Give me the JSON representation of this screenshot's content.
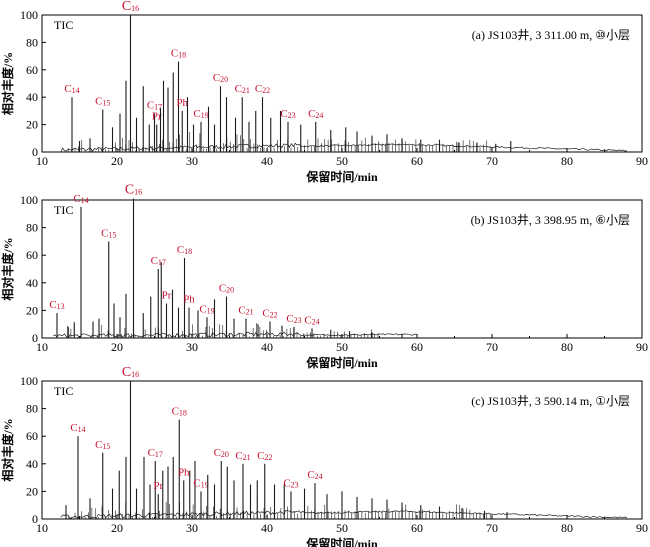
{
  "chart_data": [
    {
      "type": "line",
      "series_label": "TIC",
      "title": "(a) JS103井, 3 311.00 m, ⑩小层",
      "xlabel": "保留时间/min",
      "ylabel": "相对丰度/%",
      "xlim": [
        10,
        90
      ],
      "ylim": [
        0,
        100
      ],
      "x_ticks": [
        "10",
        "20",
        "30",
        "40",
        "50",
        "60",
        "70",
        "80",
        "90"
      ],
      "y_ticks": [
        "0",
        "20",
        "40",
        "60",
        "80",
        "100"
      ],
      "grid": false,
      "peaks": [
        {
          "x": 14.0,
          "y": 40,
          "label": "C14"
        },
        {
          "x": 15.0,
          "y": 8
        },
        {
          "x": 16.4,
          "y": 10
        },
        {
          "x": 18.1,
          "y": 31,
          "label": "C15"
        },
        {
          "x": 19.4,
          "y": 18
        },
        {
          "x": 20.4,
          "y": 28
        },
        {
          "x": 21.2,
          "y": 52
        },
        {
          "x": 21.8,
          "y": 100,
          "label": "C16"
        },
        {
          "x": 22.6,
          "y": 25
        },
        {
          "x": 23.5,
          "y": 48
        },
        {
          "x": 24.3,
          "y": 20
        },
        {
          "x": 25.0,
          "y": 28,
          "label": "C17"
        },
        {
          "x": 25.3,
          "y": 20,
          "label": "Pr"
        },
        {
          "x": 25.8,
          "y": 32
        },
        {
          "x": 26.2,
          "y": 52
        },
        {
          "x": 26.8,
          "y": 47
        },
        {
          "x": 27.5,
          "y": 58
        },
        {
          "x": 28.2,
          "y": 66,
          "label": "C18"
        },
        {
          "x": 28.7,
          "y": 30,
          "label": "Ph"
        },
        {
          "x": 29.4,
          "y": 40
        },
        {
          "x": 30.2,
          "y": 20
        },
        {
          "x": 31.2,
          "y": 22,
          "label": "C19"
        },
        {
          "x": 32.2,
          "y": 33
        },
        {
          "x": 33.0,
          "y": 20
        },
        {
          "x": 33.8,
          "y": 48,
          "label": "C20"
        },
        {
          "x": 34.6,
          "y": 40
        },
        {
          "x": 35.8,
          "y": 25
        },
        {
          "x": 36.7,
          "y": 40,
          "label": "C21"
        },
        {
          "x": 37.6,
          "y": 22
        },
        {
          "x": 38.5,
          "y": 30
        },
        {
          "x": 39.4,
          "y": 40,
          "label": "C22"
        },
        {
          "x": 40.5,
          "y": 25
        },
        {
          "x": 41.8,
          "y": 30
        },
        {
          "x": 42.8,
          "y": 22,
          "label": "C23"
        },
        {
          "x": 44.5,
          "y": 20
        },
        {
          "x": 46.5,
          "y": 22,
          "label": "C24"
        },
        {
          "x": 48.5,
          "y": 16
        },
        {
          "x": 50.5,
          "y": 18
        },
        {
          "x": 52.0,
          "y": 15
        },
        {
          "x": 54.0,
          "y": 12
        },
        {
          "x": 56.0,
          "y": 13
        },
        {
          "x": 58.0,
          "y": 10
        },
        {
          "x": 60.5,
          "y": 9
        },
        {
          "x": 63.0,
          "y": 9
        },
        {
          "x": 65.5,
          "y": 7
        },
        {
          "x": 68.0,
          "y": 7
        },
        {
          "x": 70.5,
          "y": 6
        },
        {
          "x": 72.5,
          "y": 8
        }
      ]
    },
    {
      "type": "line",
      "series_label": "TIC",
      "title": "(b) JS103井, 3 398.95 m, ⑥小层",
      "xlabel": "保留时间/min",
      "ylabel": "相对丰度/%",
      "xlim": [
        10,
        90
      ],
      "ylim": [
        0,
        100
      ],
      "x_ticks": [
        "10",
        "20",
        "30",
        "40",
        "50",
        "60",
        "70",
        "80",
        "90"
      ],
      "y_ticks": [
        "0",
        "20",
        "40",
        "60",
        "80",
        "100"
      ],
      "grid": false,
      "peaks": [
        {
          "x": 12.0,
          "y": 18,
          "label": "C13"
        },
        {
          "x": 13.5,
          "y": 8
        },
        {
          "x": 14.3,
          "y": 11
        },
        {
          "x": 15.2,
          "y": 95,
          "label": "C14"
        },
        {
          "x": 16.8,
          "y": 12
        },
        {
          "x": 17.6,
          "y": 14
        },
        {
          "x": 18.9,
          "y": 70,
          "label": "C15"
        },
        {
          "x": 19.6,
          "y": 25
        },
        {
          "x": 20.4,
          "y": 15
        },
        {
          "x": 21.2,
          "y": 32
        },
        {
          "x": 22.2,
          "y": 101,
          "label": "C16"
        },
        {
          "x": 23.5,
          "y": 18
        },
        {
          "x": 24.5,
          "y": 30
        },
        {
          "x": 25.5,
          "y": 50,
          "label": "C17"
        },
        {
          "x": 25.9,
          "y": 55
        },
        {
          "x": 26.6,
          "y": 25,
          "label": "Pr"
        },
        {
          "x": 27.4,
          "y": 35
        },
        {
          "x": 28.2,
          "y": 22
        },
        {
          "x": 29.0,
          "y": 58,
          "label": "C18"
        },
        {
          "x": 29.6,
          "y": 22,
          "label": "Ph"
        },
        {
          "x": 30.8,
          "y": 20
        },
        {
          "x": 32.0,
          "y": 15,
          "label": "C19"
        },
        {
          "x": 33.0,
          "y": 28
        },
        {
          "x": 34.6,
          "y": 30,
          "label": "C20"
        },
        {
          "x": 35.6,
          "y": 14
        },
        {
          "x": 37.2,
          "y": 14,
          "label": "C21"
        },
        {
          "x": 38.8,
          "y": 10
        },
        {
          "x": 40.4,
          "y": 12,
          "label": "C22"
        },
        {
          "x": 42.0,
          "y": 9
        },
        {
          "x": 43.6,
          "y": 8,
          "label": "C23"
        },
        {
          "x": 46.0,
          "y": 7,
          "label": "C24"
        },
        {
          "x": 48.5,
          "y": 6
        },
        {
          "x": 51.0,
          "y": 5
        },
        {
          "x": 54.0,
          "y": 4
        },
        {
          "x": 58.0,
          "y": 3
        }
      ]
    },
    {
      "type": "line",
      "series_label": "TIC",
      "title": "(c) JS103井, 3 590.14 m, ①小层",
      "xlabel": "保留时间/min",
      "ylabel": "相对丰度/%",
      "xlim": [
        10,
        90
      ],
      "ylim": [
        0,
        100
      ],
      "x_ticks": [
        "10",
        "20",
        "30",
        "40",
        "50",
        "60",
        "70",
        "80",
        "90"
      ],
      "y_ticks": [
        "0",
        "20",
        "40",
        "60",
        "80",
        "100"
      ],
      "grid": false,
      "peaks": [
        {
          "x": 13.2,
          "y": 10
        },
        {
          "x": 14.8,
          "y": 60,
          "label": "C14"
        },
        {
          "x": 16.4,
          "y": 15
        },
        {
          "x": 18.1,
          "y": 48,
          "label": "C15"
        },
        {
          "x": 19.4,
          "y": 22
        },
        {
          "x": 20.3,
          "y": 35
        },
        {
          "x": 21.2,
          "y": 45
        },
        {
          "x": 21.8,
          "y": 100,
          "label": "C16"
        },
        {
          "x": 22.6,
          "y": 22
        },
        {
          "x": 23.6,
          "y": 45
        },
        {
          "x": 24.4,
          "y": 25
        },
        {
          "x": 25.1,
          "y": 42,
          "label": "C17"
        },
        {
          "x": 25.5,
          "y": 18,
          "label": "Pr"
        },
        {
          "x": 26.1,
          "y": 35
        },
        {
          "x": 26.8,
          "y": 38
        },
        {
          "x": 27.5,
          "y": 45
        },
        {
          "x": 28.3,
          "y": 72,
          "label": "C18"
        },
        {
          "x": 28.9,
          "y": 28,
          "label": "Ph"
        },
        {
          "x": 29.7,
          "y": 35
        },
        {
          "x": 30.4,
          "y": 42
        },
        {
          "x": 31.2,
          "y": 20,
          "label": "C19"
        },
        {
          "x": 32.1,
          "y": 32
        },
        {
          "x": 33.0,
          "y": 25
        },
        {
          "x": 33.9,
          "y": 42,
          "label": "C20"
        },
        {
          "x": 34.7,
          "y": 38
        },
        {
          "x": 35.6,
          "y": 28
        },
        {
          "x": 36.8,
          "y": 40,
          "label": "C21"
        },
        {
          "x": 37.8,
          "y": 25
        },
        {
          "x": 38.7,
          "y": 28
        },
        {
          "x": 39.7,
          "y": 40,
          "label": "C22"
        },
        {
          "x": 41.0,
          "y": 25
        },
        {
          "x": 42.3,
          "y": 25
        },
        {
          "x": 43.2,
          "y": 20,
          "label": "C23"
        },
        {
          "x": 45.0,
          "y": 22
        },
        {
          "x": 46.4,
          "y": 26,
          "label": "C24"
        },
        {
          "x": 48.0,
          "y": 18
        },
        {
          "x": 50.0,
          "y": 20
        },
        {
          "x": 52.0,
          "y": 16
        },
        {
          "x": 54.0,
          "y": 15
        },
        {
          "x": 56.0,
          "y": 14
        },
        {
          "x": 58.0,
          "y": 12
        },
        {
          "x": 60.5,
          "y": 10
        },
        {
          "x": 63.0,
          "y": 9
        },
        {
          "x": 66.0,
          "y": 8
        },
        {
          "x": 69.0,
          "y": 6
        },
        {
          "x": 72.0,
          "y": 5
        }
      ]
    }
  ],
  "colors": {
    "axis": "#000000",
    "trace": "#1a1a1a",
    "peak_label": "#c8102e",
    "text": "#000000"
  }
}
